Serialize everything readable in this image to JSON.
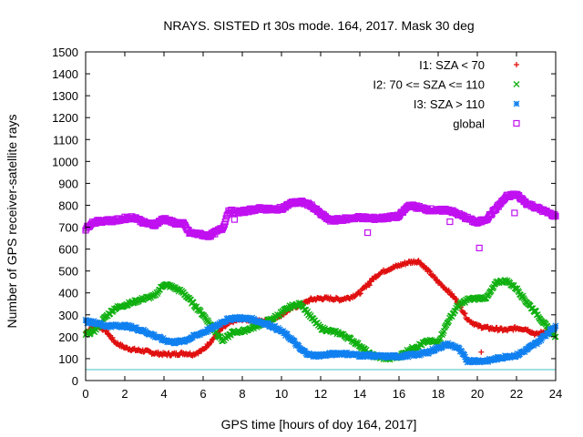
{
  "chart_data": {
    "type": "scatter",
    "title": "NRAYS. SISTED rt 30s mode. 164, 2017. Mask 30 deg",
    "xlabel": "GPS time [hours of doy 164, 2017]",
    "ylabel": "Number of GPS receiver-satellite rays",
    "xlim": [
      0,
      24
    ],
    "ylim": [
      0,
      1500
    ],
    "xticks": [
      0,
      2,
      4,
      6,
      8,
      10,
      12,
      14,
      16,
      18,
      20,
      22,
      24
    ],
    "yticks": [
      0,
      100,
      200,
      300,
      400,
      500,
      600,
      700,
      800,
      900,
      1000,
      1100,
      1200,
      1300,
      1400,
      1500
    ],
    "grid": false,
    "legend_position": "top-right",
    "threshold_line": {
      "y": 50,
      "color": "#40c0c0"
    },
    "series": [
      {
        "name": "I1: SZA < 70",
        "marker": "+",
        "color": "#e01010",
        "x": [
          0,
          0.3,
          0.6,
          1,
          1.5,
          2,
          2.5,
          3,
          3.5,
          4,
          4.5,
          5,
          5.5,
          6,
          6.5,
          7,
          7.5,
          8,
          8.5,
          9,
          9.5,
          10,
          10.5,
          11,
          11.5,
          12,
          12.5,
          13,
          13.5,
          14,
          14.5,
          15,
          15.5,
          16,
          16.5,
          17,
          17.5,
          18,
          18.5,
          19,
          19.5,
          20,
          20.5,
          21,
          21.5,
          22,
          22.5,
          23,
          23.5,
          24
        ],
        "y": [
          220,
          240,
          250,
          230,
          175,
          150,
          140,
          135,
          125,
          120,
          120,
          125,
          120,
          140,
          190,
          240,
          270,
          280,
          275,
          270,
          280,
          300,
          330,
          345,
          370,
          375,
          375,
          370,
          380,
          400,
          450,
          490,
          510,
          525,
          540,
          545,
          500,
          450,
          410,
          360,
          280,
          250,
          240,
          235,
          230,
          240,
          235,
          210,
          225,
          240
        ]
      },
      {
        "name": "I2: 70 <= SZA <= 110",
        "marker": "x",
        "color": "#10b010",
        "x": [
          0,
          0.5,
          1,
          1.5,
          2,
          2.5,
          3,
          3.5,
          4,
          4.5,
          5,
          5.5,
          6,
          6.5,
          7,
          7.5,
          8,
          8.5,
          9,
          9.5,
          10,
          10.5,
          11,
          11.5,
          12,
          12.5,
          13,
          13.5,
          14,
          14.5,
          15,
          15.5,
          16,
          16.5,
          17,
          17.5,
          18,
          18.5,
          19,
          19.5,
          20,
          20.5,
          21,
          21.5,
          22,
          22.5,
          23,
          23.5,
          24
        ],
        "y": [
          210,
          230,
          290,
          330,
          345,
          360,
          375,
          385,
          440,
          425,
          400,
          350,
          300,
          240,
          180,
          220,
          225,
          240,
          260,
          280,
          310,
          340,
          350,
          290,
          240,
          225,
          215,
          190,
          160,
          120,
          105,
          100,
          110,
          140,
          160,
          180,
          175,
          270,
          340,
          370,
          375,
          380,
          450,
          455,
          420,
          360,
          310,
          250,
          200
        ]
      },
      {
        "name": "I3: SZA > 110",
        "marker": "*",
        "color": "#1080f0",
        "x": [
          0,
          0.5,
          1,
          1.5,
          2,
          2.5,
          3,
          3.5,
          4,
          4.5,
          5,
          5.5,
          6,
          6.5,
          7,
          7.5,
          8,
          8.5,
          9,
          9.5,
          10,
          10.5,
          11,
          11.5,
          12,
          12.5,
          13,
          13.5,
          14,
          14.5,
          15,
          15.5,
          16,
          16.5,
          17,
          17.5,
          18,
          18.5,
          19,
          19.5,
          20,
          20.5,
          21,
          21.5,
          22,
          22.5,
          23,
          23.5,
          24
        ],
        "y": [
          270,
          265,
          250,
          250,
          250,
          240,
          225,
          205,
          185,
          175,
          180,
          200,
          220,
          240,
          270,
          285,
          285,
          280,
          265,
          250,
          225,
          190,
          140,
          115,
          115,
          120,
          125,
          120,
          115,
          115,
          110,
          110,
          110,
          115,
          120,
          130,
          150,
          165,
          150,
          90,
          90,
          90,
          100,
          110,
          115,
          140,
          170,
          210,
          250
        ]
      },
      {
        "name": "global",
        "marker": "square",
        "color": "#c010f0",
        "x": [
          0,
          0.3,
          0.6,
          1,
          1.5,
          2,
          2.5,
          3,
          3.5,
          4,
          4.5,
          5,
          5.3,
          5.6,
          6,
          6.3,
          6.6,
          7,
          7.3,
          7.6,
          8,
          8.5,
          9,
          9.5,
          10,
          10.5,
          11,
          11.5,
          12,
          12.5,
          13,
          13.5,
          14,
          14.5,
          15,
          15.5,
          16,
          16.5,
          17,
          17.5,
          18,
          18.5,
          19,
          19.5,
          20,
          20.5,
          21,
          21.5,
          22,
          22.5,
          23,
          23.5,
          24
        ],
        "y": [
          690,
          720,
          725,
          730,
          730,
          740,
          745,
          720,
          710,
          740,
          720,
          715,
          675,
          670,
          665,
          660,
          675,
          695,
          775,
          770,
          770,
          780,
          785,
          780,
          785,
          810,
          815,
          800,
          760,
          730,
          735,
          740,
          745,
          740,
          740,
          745,
          750,
          800,
          790,
          780,
          775,
          780,
          760,
          740,
          720,
          740,
          790,
          840,
          850,
          810,
          790,
          770,
          750
        ]
      }
    ],
    "outliers": [
      {
        "series": "I1: SZA < 70",
        "x": 14.5,
        "y": 435
      },
      {
        "series": "I1: SZA < 70",
        "x": 20.2,
        "y": 130
      },
      {
        "series": "global",
        "x": 7.6,
        "y": 735
      },
      {
        "series": "global",
        "x": 14.4,
        "y": 675
      },
      {
        "series": "global",
        "x": 18.6,
        "y": 725
      },
      {
        "series": "global",
        "x": 20.1,
        "y": 605
      },
      {
        "series": "global",
        "x": 21.9,
        "y": 765
      }
    ]
  }
}
